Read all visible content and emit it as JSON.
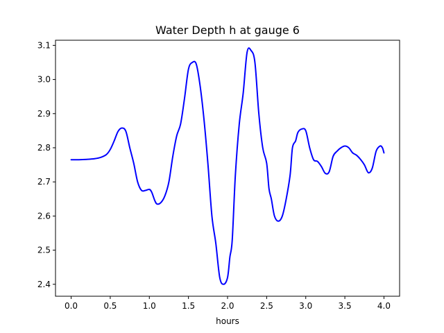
{
  "chart_data": {
    "type": "line",
    "title": "Water Depth h at gauge 6",
    "xlabel": "hours",
    "ylabel": "",
    "xlim": [
      -0.2,
      4.2
    ],
    "ylim": [
      2.365,
      3.115
    ],
    "x_ticks": [
      0.0,
      0.5,
      1.0,
      1.5,
      2.0,
      2.5,
      3.0,
      3.5,
      4.0
    ],
    "x_tick_labels": [
      "0.0",
      "0.5",
      "1.0",
      "1.5",
      "2.0",
      "2.5",
      "3.0",
      "3.5",
      "4.0"
    ],
    "y_ticks": [
      2.4,
      2.5,
      2.6,
      2.7,
      2.8,
      2.9,
      3.0,
      3.1
    ],
    "y_tick_labels": [
      "2.4",
      "2.5",
      "2.6",
      "2.7",
      "2.8",
      "2.9",
      "3.0",
      "3.1"
    ],
    "grid": false,
    "series": [
      {
        "color": "#0000ff",
        "x": [
          0.0,
          0.1,
          0.2,
          0.3,
          0.38,
          0.45,
          0.5,
          0.55,
          0.6,
          0.65,
          0.7,
          0.75,
          0.8,
          0.85,
          0.9,
          0.95,
          1.0,
          1.03,
          1.07,
          1.1,
          1.15,
          1.2,
          1.25,
          1.3,
          1.35,
          1.4,
          1.45,
          1.5,
          1.55,
          1.6,
          1.65,
          1.7,
          1.75,
          1.8,
          1.85,
          1.9,
          1.95,
          2.0,
          2.03,
          2.06,
          2.1,
          2.15,
          2.2,
          2.25,
          2.3,
          2.35,
          2.4,
          2.45,
          2.5,
          2.53,
          2.56,
          2.6,
          2.65,
          2.7,
          2.75,
          2.8,
          2.83,
          2.87,
          2.9,
          2.95,
          3.0,
          3.05,
          3.1,
          3.15,
          3.2,
          3.25,
          3.3,
          3.35,
          3.4,
          3.45,
          3.5,
          3.55,
          3.6,
          3.65,
          3.7,
          3.75,
          3.8,
          3.85,
          3.9,
          3.95,
          3.98,
          4.0
        ],
        "y": [
          2.765,
          2.765,
          2.766,
          2.768,
          2.772,
          2.78,
          2.795,
          2.82,
          2.848,
          2.858,
          2.848,
          2.8,
          2.755,
          2.7,
          2.675,
          2.675,
          2.678,
          2.67,
          2.645,
          2.635,
          2.64,
          2.66,
          2.7,
          2.775,
          2.835,
          2.87,
          2.945,
          3.03,
          3.05,
          3.045,
          2.98,
          2.88,
          2.75,
          2.6,
          2.52,
          2.42,
          2.4,
          2.42,
          2.48,
          2.53,
          2.72,
          2.87,
          2.96,
          3.08,
          3.085,
          3.05,
          2.9,
          2.8,
          2.755,
          2.68,
          2.65,
          2.6,
          2.585,
          2.6,
          2.65,
          2.72,
          2.8,
          2.82,
          2.845,
          2.855,
          2.85,
          2.8,
          2.765,
          2.76,
          2.745,
          2.725,
          2.73,
          2.775,
          2.79,
          2.8,
          2.805,
          2.8,
          2.785,
          2.778,
          2.766,
          2.75,
          2.727,
          2.74,
          2.79,
          2.805,
          2.8,
          2.785
        ]
      }
    ]
  }
}
